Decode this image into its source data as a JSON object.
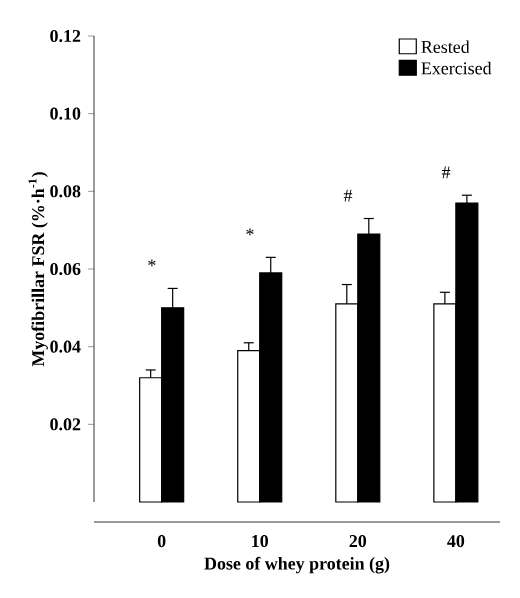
{
  "chart_data": {
    "type": "bar",
    "xlabel": "Dose of whey protein (g)",
    "ylabel": "Myofibrillar FSR (%·h$^{-1}$)",
    "categories": [
      "0",
      "10",
      "20",
      "40"
    ],
    "series": [
      {
        "name": "Rested",
        "color": "#ffffff",
        "values": [
          0.032,
          0.039,
          0.051,
          0.051
        ],
        "errors": [
          [
            0.032,
            0.034
          ],
          [
            0.039,
            0.041
          ],
          [
            0.051,
            0.056
          ],
          [
            0.051,
            0.054
          ]
        ]
      },
      {
        "name": "Exercised",
        "color": "#000000",
        "values": [
          0.05,
          0.059,
          0.069,
          0.077
        ],
        "errors": [
          [
            0.05,
            0.055
          ],
          [
            0.059,
            0.063
          ],
          [
            0.069,
            0.073
          ],
          [
            0.077,
            0.079
          ]
        ]
      }
    ],
    "ylim": [
      0,
      0.12
    ],
    "yticks": [
      0.02,
      0.04,
      0.06,
      0.08,
      {
        "value": 0.1,
        "label": "0.10"
      },
      0.12
    ],
    "legend": "top right",
    "grid": false,
    "annotations": [
      "*",
      "*",
      "#",
      "#"
    ]
  }
}
